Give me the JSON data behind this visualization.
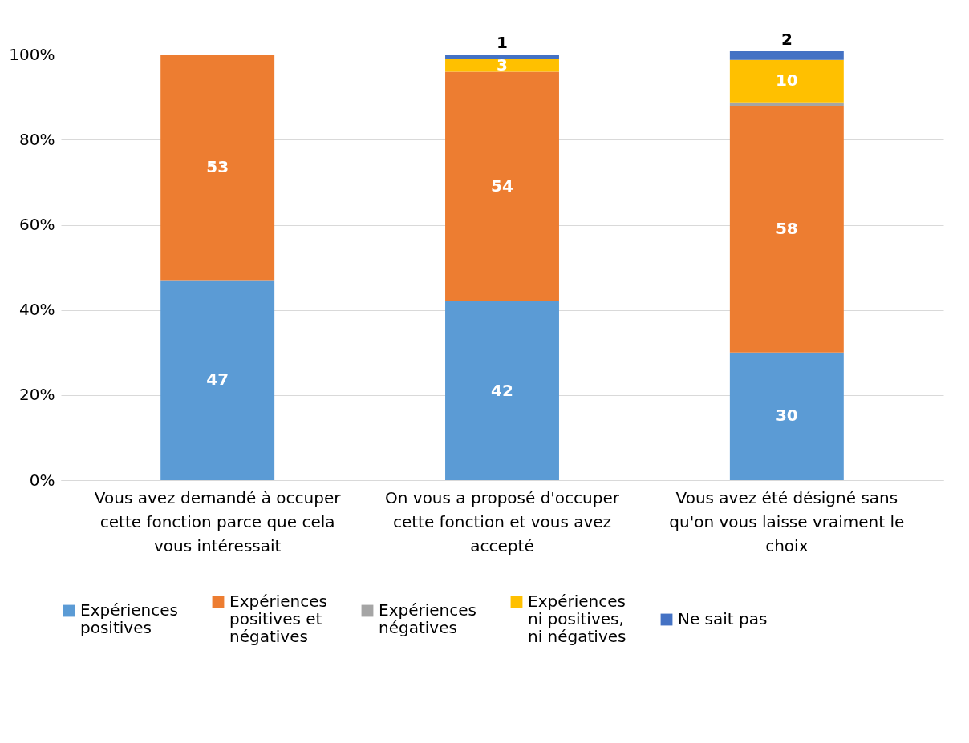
{
  "chart_data": {
    "type": "bar",
    "stacked": true,
    "categories": [
      "Vous avez demandé à occuper cette fonction parce que cela vous intéressait",
      "On vous a proposé d'occuper cette fonction et vous avez accepté",
      "Vous avez été désigné sans qu'on vous laisse vraiment le choix"
    ],
    "series": [
      {
        "name": "Expériences positives",
        "color": "#5b9bd5",
        "values": [
          47,
          42,
          30
        ],
        "value_labels": [
          "47",
          "42",
          "30"
        ]
      },
      {
        "name": "Expériences positives et négatives",
        "color": "#ed7d31",
        "values": [
          53,
          54,
          58
        ],
        "value_labels": [
          "53",
          "54",
          "58"
        ]
      },
      {
        "name": "Expériences négatives",
        "color": "#a5a5a5",
        "values": [
          null,
          null,
          0.8
        ],
        "value_labels": [
          null,
          null,
          null
        ]
      },
      {
        "name": "Expériences ni positives, ni négatives",
        "color": "#ffc000",
        "values": [
          null,
          3,
          10
        ],
        "value_labels": [
          null,
          "3",
          "10"
        ]
      },
      {
        "name": "Ne sait pas",
        "color": "#4472c4",
        "values": [
          null,
          1,
          2
        ],
        "value_labels": [
          null,
          "1",
          "2"
        ]
      }
    ],
    "ylim": [
      0,
      101
    ],
    "yticks": [
      {
        "value": 0,
        "label": "0%"
      },
      {
        "value": 20,
        "label": "20%"
      },
      {
        "value": 40,
        "label": "40%"
      },
      {
        "value": 60,
        "label": "60%"
      },
      {
        "value": 80,
        "label": "80%"
      },
      {
        "value": 100,
        "label": "100%"
      }
    ],
    "grid": "y",
    "legend": "bottom"
  }
}
